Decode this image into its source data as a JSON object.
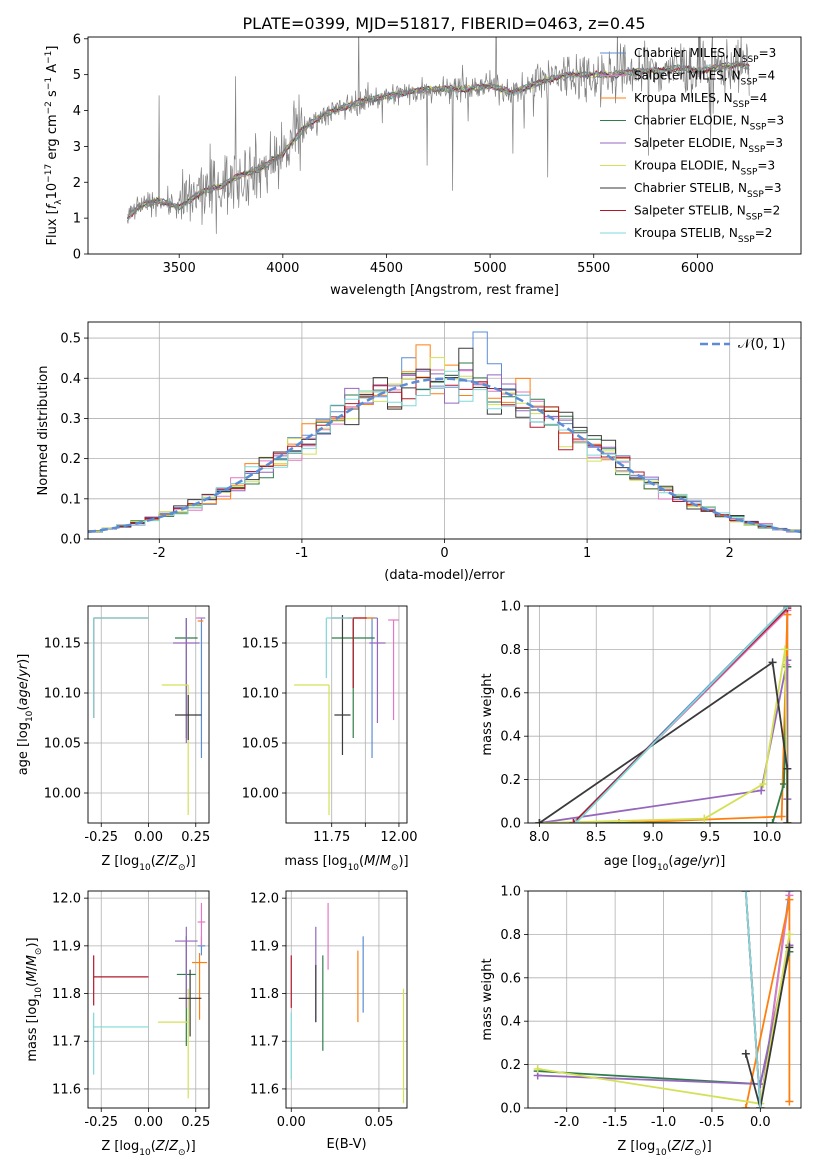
{
  "title": "PLATE=0399, MJD=51817, FIBERID=0463, z=0.45",
  "chart_data": [
    {
      "id": "spectrum",
      "type": "line",
      "xlabel": "wavelength [Angstrom, rest frame]",
      "ylabel": "Flux [fλ10⁻¹⁷ erg cm⁻² s⁻¹ A⁻¹]",
      "xlim": [
        3060,
        6500
      ],
      "ylim": [
        0,
        6.05
      ],
      "xticks": [
        3500,
        4000,
        4500,
        5000,
        5500,
        6000
      ],
      "yticks": [
        0,
        1,
        2,
        3,
        4,
        5,
        6
      ],
      "grid": false,
      "legend_position": "top-right",
      "data_wavelength_range": [
        3250,
        6250
      ],
      "continuum": {
        "x": [
          3250,
          3300,
          3400,
          3500,
          3600,
          3700,
          3800,
          3900,
          4000,
          4100,
          4200,
          4300,
          4400,
          4500,
          4600,
          4700,
          4800,
          4900,
          5000,
          5100,
          5200,
          5300,
          5400,
          5500,
          5600,
          5700,
          5800,
          5900,
          6000,
          6100,
          6200,
          6250
        ],
        "y": [
          1.0,
          1.3,
          1.5,
          1.3,
          1.7,
          1.9,
          2.2,
          2.4,
          2.8,
          3.5,
          3.9,
          4.1,
          4.3,
          4.4,
          4.5,
          4.6,
          4.6,
          4.6,
          4.7,
          4.5,
          4.7,
          4.9,
          5.0,
          5.0,
          5.0,
          5.1,
          5.1,
          5.2,
          5.1,
          5.2,
          5.3,
          5.2
        ]
      },
      "series": [
        {
          "name": "Chabrier MILES, N_SSP=3",
          "color": "#5b8dd6"
        },
        {
          "name": "Salpeter MILES, N_SSP=4",
          "color": "#e377c2"
        },
        {
          "name": "Kroupa MILES, N_SSP=4",
          "color": "#ff7f0e"
        },
        {
          "name": "Chabrier ELODIE, N_SSP=3",
          "color": "#2f7d4a"
        },
        {
          "name": "Salpeter ELODIE, N_SSP=3",
          "color": "#9467bd"
        },
        {
          "name": "Kroupa ELODIE, N_SSP=3",
          "color": "#d4e157"
        },
        {
          "name": "Chabrier STELIB, N_SSP=3",
          "color": "#3a3a3a"
        },
        {
          "name": "Salpeter STELIB, N_SSP=2",
          "color": "#b2182b"
        },
        {
          "name": "Kroupa STELIB, N_SSP=2",
          "color": "#7fd8d8"
        }
      ]
    },
    {
      "id": "residuals",
      "type": "histogram",
      "xlabel": "(data-model)/error",
      "ylabel": "Normed distribution",
      "xlim": [
        -2.5,
        2.5
      ],
      "ylim": [
        0,
        0.54
      ],
      "xticks": [
        -2,
        -1,
        0,
        1,
        2
      ],
      "yticks": [
        0.0,
        0.1,
        0.2,
        0.3,
        0.4,
        0.5
      ],
      "grid": true,
      "legend_position": "top-right",
      "reference": {
        "name": "𝒩(0, 1)",
        "mean": 0,
        "sigma": 1,
        "color": "#5b8dd6"
      }
    },
    {
      "id": "age-vs-Z",
      "type": "errorbar",
      "xlabel": "Z [log10(Z/Z⊙)]",
      "ylabel": "age  [log10(age/yr)]",
      "xlim": [
        -0.32,
        0.32
      ],
      "ylim": [
        9.97,
        10.187
      ],
      "xticks": [
        -0.25,
        0.0,
        0.25
      ],
      "yticks": [
        10.0,
        10.05,
        10.1,
        10.15
      ],
      "grid": true,
      "points": [
        {
          "x": 0.28,
          "xerr": [
            0.02,
            0.02
          ],
          "y": 10.175,
          "yerr": [
            0.14,
            0.0
          ],
          "color": "#5b8dd6"
        },
        {
          "x": 0.27,
          "xerr": [
            0.02,
            0.02
          ],
          "y": 10.175,
          "yerr": [
            0.0,
            0.0
          ],
          "color": "#e377c2"
        },
        {
          "x": 0.29,
          "xerr": [
            0.03,
            0.0
          ],
          "y": 10.172,
          "yerr": [
            0.0,
            0.0
          ],
          "color": "#ff7f0e"
        },
        {
          "x": 0.2,
          "xerr": [
            0.06,
            0.06
          ],
          "y": 10.155,
          "yerr": [
            0.1,
            0.02
          ],
          "color": "#2f7d4a"
        },
        {
          "x": 0.2,
          "xerr": [
            0.07,
            0.07
          ],
          "y": 10.15,
          "yerr": [
            0.1,
            0.025
          ],
          "color": "#9467bd"
        },
        {
          "x": 0.21,
          "xerr": [
            0.14,
            0.0
          ],
          "y": 10.108,
          "yerr": [
            0.13,
            0.0
          ],
          "color": "#d4e157"
        },
        {
          "x": 0.21,
          "xerr": [
            0.07,
            0.07
          ],
          "y": 10.078,
          "yerr": [
            0.025,
            0.02
          ],
          "color": "#3a3a3a"
        },
        {
          "x": -0.29,
          "xerr": [
            0.0,
            0.29
          ],
          "y": 10.175,
          "yerr": [
            0.1,
            0.0
          ],
          "color": "#b2182b"
        },
        {
          "x": -0.29,
          "xerr": [
            0.0,
            0.29
          ],
          "y": 10.175,
          "yerr": [
            0.1,
            0.0
          ],
          "color": "#7fd8d8"
        }
      ]
    },
    {
      "id": "age-vs-mass",
      "type": "errorbar",
      "xlabel": "mass [log10(M/M⊙)]",
      "ylabel": "",
      "xlim": [
        11.58,
        12.03
      ],
      "ylim": [
        9.97,
        10.187
      ],
      "xticks": [
        11.75,
        11.875,
        12.0
      ],
      "xticklabels": [
        "11.75",
        "",
        "12.00"
      ],
      "yticks": [
        10.0,
        10.05,
        10.1,
        10.15
      ],
      "grid": true,
      "points": [
        {
          "x": 11.9,
          "xerr": [
            0.02,
            0.02
          ],
          "y": 10.175,
          "yerr": [
            0.14,
            0.0
          ],
          "color": "#5b8dd6"
        },
        {
          "x": 11.98,
          "xerr": [
            0.02,
            0.02
          ],
          "y": 10.173,
          "yerr": [
            0.1,
            0.0
          ],
          "color": "#e377c2"
        },
        {
          "x": 11.86,
          "xerr": [
            0.05,
            0.05
          ],
          "y": 10.175,
          "yerr": [
            0.0,
            0.0
          ],
          "color": "#ff7f0e"
        },
        {
          "x": 11.83,
          "xerr": [
            0.08,
            0.08
          ],
          "y": 10.155,
          "yerr": [
            0.1,
            0.02
          ],
          "color": "#2f7d4a"
        },
        {
          "x": 11.92,
          "xerr": [
            0.03,
            0.03
          ],
          "y": 10.15,
          "yerr": [
            0.08,
            0.025
          ],
          "color": "#9467bd"
        },
        {
          "x": 11.74,
          "xerr": [
            0.13,
            0.0
          ],
          "y": 10.108,
          "yerr": [
            0.13,
            0.0
          ],
          "color": "#d4e157"
        },
        {
          "x": 11.79,
          "xerr": [
            0.03,
            0.03
          ],
          "y": 10.078,
          "yerr": [
            0.04,
            0.1
          ],
          "color": "#3a3a3a"
        },
        {
          "x": 11.83,
          "xerr": [
            0.08,
            0.05
          ],
          "y": 10.175,
          "yerr": [
            0.07,
            0.0
          ],
          "color": "#b2182b"
        },
        {
          "x": 11.73,
          "xerr": [
            0.0,
            0.1
          ],
          "y": 10.175,
          "yerr": [
            0.06,
            0.0
          ],
          "color": "#7fd8d8"
        }
      ]
    },
    {
      "id": "massweight-vs-age",
      "type": "line",
      "xlabel": "age  [log10(age/yr)]",
      "ylabel": "mass weight",
      "xlim": [
        7.9,
        10.3
      ],
      "ylim": [
        0,
        1
      ],
      "xticks": [
        8.0,
        8.5,
        9.0,
        9.5,
        10.0
      ],
      "yticks": [
        0.0,
        0.2,
        0.4,
        0.6,
        0.8,
        1.0
      ],
      "grid": true,
      "series": [
        {
          "color": "#5b8dd6",
          "x": [
            8.3,
            10.18,
            10.18
          ],
          "y": [
            0.0,
            1.0,
            0.0
          ]
        },
        {
          "color": "#e377c2",
          "x": [
            8.3,
            10.18,
            10.17,
            10.18
          ],
          "y": [
            0.0,
            0.98,
            0.73,
            0.0
          ]
        },
        {
          "color": "#ff7f0e",
          "x": [
            8.0,
            8.7,
            10.13,
            10.18,
            10.18
          ],
          "y": [
            0.0,
            0.0,
            0.03,
            0.96,
            0.0
          ]
        },
        {
          "color": "#2f7d4a",
          "x": [
            8.0,
            10.05,
            10.15,
            10.18
          ],
          "y": [
            0.0,
            0.0,
            0.18,
            0.72
          ]
        },
        {
          "color": "#9467bd",
          "x": [
            8.0,
            9.95,
            10.18,
            10.18
          ],
          "y": [
            0.0,
            0.15,
            0.75,
            0.11
          ]
        },
        {
          "color": "#d4e157",
          "x": [
            8.0,
            9.45,
            9.97,
            10.16,
            10.18
          ],
          "y": [
            0.0,
            0.02,
            0.18,
            0.8,
            0.0
          ]
        },
        {
          "color": "#3a3a3a",
          "x": [
            8.0,
            10.05,
            10.18,
            10.18
          ],
          "y": [
            0.0,
            0.74,
            0.25,
            0.0
          ]
        },
        {
          "color": "#b2182b",
          "x": [
            8.3,
            10.18
          ],
          "y": [
            0.0,
            0.99
          ]
        },
        {
          "color": "#7fd8d8",
          "x": [
            8.32,
            10.18
          ],
          "y": [
            0.0,
            1.0
          ]
        }
      ]
    },
    {
      "id": "mass-vs-Z",
      "type": "errorbar",
      "xlabel": "Z [log10(Z/Z⊙)]",
      "ylabel": "mass [log10(M/M⊙)]",
      "xlim": [
        -0.32,
        0.32
      ],
      "ylim": [
        11.56,
        12.015
      ],
      "xticks": [
        -0.25,
        0.0,
        0.25
      ],
      "yticks": [
        11.6,
        11.7,
        11.8,
        11.9,
        12.0
      ],
      "grid": true,
      "points": [
        {
          "x": 0.28,
          "xerr": [
            0.02,
            0.02
          ],
          "y": 11.9,
          "yerr": [
            0.02,
            0.02
          ],
          "color": "#5b8dd6"
        },
        {
          "x": 0.28,
          "xerr": [
            0.02,
            0.02
          ],
          "y": 11.95,
          "yerr": [
            0.05,
            0.04
          ],
          "color": "#e377c2"
        },
        {
          "x": 0.27,
          "xerr": [
            0.04,
            0.04
          ],
          "y": 11.865,
          "yerr": [
            0.12,
            0.02
          ],
          "color": "#ff7f0e"
        },
        {
          "x": 0.2,
          "xerr": [
            0.05,
            0.05
          ],
          "y": 11.84,
          "yerr": [
            0.15,
            0.08
          ],
          "color": "#2f7d4a"
        },
        {
          "x": 0.2,
          "xerr": [
            0.06,
            0.06
          ],
          "y": 11.91,
          "yerr": [
            0.14,
            0.03
          ],
          "color": "#9467bd"
        },
        {
          "x": 0.21,
          "xerr": [
            0.16,
            0.0
          ],
          "y": 11.74,
          "yerr": [
            0.16,
            0.07
          ],
          "color": "#d4e157"
        },
        {
          "x": 0.22,
          "xerr": [
            0.06,
            0.06
          ],
          "y": 11.79,
          "yerr": [
            0.08,
            0.06
          ],
          "color": "#3a3a3a"
        },
        {
          "x": -0.29,
          "xerr": [
            0.0,
            0.29
          ],
          "y": 11.835,
          "yerr": [
            0.06,
            0.045
          ],
          "color": "#b2182b"
        },
        {
          "x": -0.29,
          "xerr": [
            0.0,
            0.29
          ],
          "y": 11.73,
          "yerr": [
            0.1,
            0.03
          ],
          "color": "#7fd8d8"
        }
      ]
    },
    {
      "id": "mass-vs-EBV",
      "type": "errorbar",
      "xlabel": "E(B-V)",
      "ylabel": "",
      "xlim": [
        -0.003,
        0.066
      ],
      "ylim": [
        11.56,
        12.015
      ],
      "xticks": [
        0.0,
        0.05
      ],
      "yticks": [
        11.6,
        11.7,
        11.8,
        11.9,
        12.0
      ],
      "grid": true,
      "points": [
        {
          "x": 0.041,
          "xerr": [
            0,
            0
          ],
          "y": 11.86,
          "yerr": [
            0.1,
            0.06
          ],
          "color": "#5b8dd6"
        },
        {
          "x": 0.021,
          "xerr": [
            0,
            0
          ],
          "y": 11.93,
          "yerr": [
            0.08,
            0.06
          ],
          "color": "#e377c2"
        },
        {
          "x": 0.038,
          "xerr": [
            0,
            0
          ],
          "y": 11.82,
          "yerr": [
            0.08,
            0.07
          ],
          "color": "#ff7f0e"
        },
        {
          "x": 0.018,
          "xerr": [
            0,
            0
          ],
          "y": 11.78,
          "yerr": [
            0.1,
            0.1
          ],
          "color": "#2f7d4a"
        },
        {
          "x": 0.014,
          "xerr": [
            0,
            0
          ],
          "y": 11.84,
          "yerr": [
            0.1,
            0.1
          ],
          "color": "#9467bd"
        },
        {
          "x": 0.064,
          "xerr": [
            0,
            0
          ],
          "y": 11.69,
          "yerr": [
            0.12,
            0.12
          ],
          "color": "#d4e157"
        },
        {
          "x": 0.014,
          "xerr": [
            0,
            0
          ],
          "y": 11.8,
          "yerr": [
            0.06,
            0.06
          ],
          "color": "#3a3a3a"
        },
        {
          "x": 0.0,
          "xerr": [
            0,
            0
          ],
          "y": 11.83,
          "yerr": [
            0.06,
            0.05
          ],
          "color": "#b2182b"
        },
        {
          "x": 0.0,
          "xerr": [
            0,
            0
          ],
          "y": 11.7,
          "yerr": [
            0.08,
            0.06
          ],
          "color": "#7fd8d8"
        }
      ]
    },
    {
      "id": "massweight-vs-Z",
      "type": "line",
      "xlabel": "Z [log10(Z/Z⊙)]",
      "ylabel": "mass weight",
      "xlim": [
        -2.4,
        0.42
      ],
      "ylim": [
        0,
        1
      ],
      "xticks": [
        -2.0,
        -1.5,
        -1.0,
        -0.5,
        0.0
      ],
      "yticks": [
        0.0,
        0.2,
        0.4,
        0.6,
        0.8,
        1.0
      ],
      "grid": true,
      "series": [
        {
          "color": "#5b8dd6",
          "x": [
            -0.15,
            0.0,
            0.3
          ],
          "y": [
            1.0,
            0.0,
            1.0
          ]
        },
        {
          "color": "#e377c2",
          "x": [
            -0.15,
            0.0,
            0.3
          ],
          "y": [
            1.0,
            0.0,
            0.98
          ]
        },
        {
          "color": "#ff7f0e",
          "x": [
            -0.15,
            0.3,
            0.3
          ],
          "y": [
            0.0,
            0.96,
            0.03
          ]
        },
        {
          "color": "#2f7d4a",
          "x": [
            -2.3,
            0.0,
            0.3
          ],
          "y": [
            0.17,
            0.11,
            0.72
          ]
        },
        {
          "color": "#9467bd",
          "x": [
            -2.3,
            0.0,
            0.3
          ],
          "y": [
            0.15,
            0.11,
            0.75
          ]
        },
        {
          "color": "#d4e157",
          "x": [
            -2.3,
            0.0,
            0.3
          ],
          "y": [
            0.18,
            0.02,
            0.8
          ]
        },
        {
          "color": "#3a3a3a",
          "x": [
            -0.15,
            0.0,
            0.3
          ],
          "y": [
            0.25,
            0.0,
            0.74
          ]
        },
        {
          "color": "#b2182b",
          "x": [
            -0.15,
            0.0
          ],
          "y": [
            1.0,
            0.0
          ]
        },
        {
          "color": "#7fd8d8",
          "x": [
            -0.15,
            0.0
          ],
          "y": [
            1.0,
            0.0
          ]
        }
      ]
    }
  ]
}
